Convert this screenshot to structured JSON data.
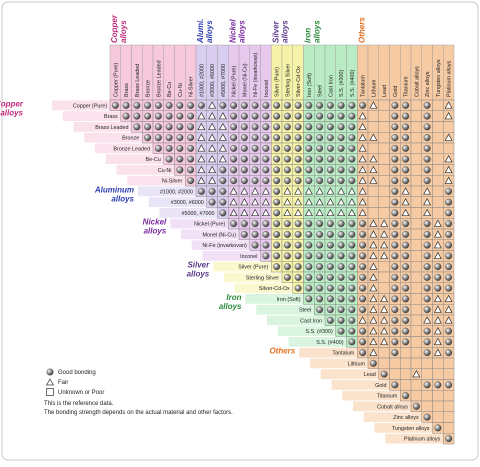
{
  "materials": [
    "Copper (Pure)",
    "Brass",
    "Brass Leaded",
    "Bronze",
    "Bronze Leaded",
    "Be-Cu",
    "Cu-Ni",
    "Ni-Silver",
    "#1000, #2000",
    "#3000, #6000",
    "#5000, #7000",
    "Nickel (Pure)",
    "Monel (Ni-Cu)",
    "Ni-Fe (invarkovan)",
    "Inconel",
    "Silver (Pure)",
    "Sterling Silver",
    "Silver-Cd-Ox",
    "Iron (Soft)",
    "Steel",
    "Cast Iron",
    "S.S. (#300)",
    "S.S. (#400)",
    "Tantalum",
    "Lithium",
    "Lead",
    "Gold",
    "Titanium",
    "Cobalt alloys",
    "Zinc alloys",
    "Tungsten alloys",
    "Platinum alloys"
  ],
  "groups": [
    {
      "top_label": [
        "Copper",
        "alloys"
      ],
      "side_label": [
        "Copper",
        "alloys"
      ],
      "start": 0,
      "count": 8,
      "color": "#f6c9dd",
      "text_color": "#c0287a"
    },
    {
      "top_label": [
        "Alumi.",
        "alloys"
      ],
      "side_label": [
        "Aluminum",
        "alloys"
      ],
      "start": 8,
      "count": 3,
      "color": "#d9cdf0",
      "text_color": "#2a3cb0"
    },
    {
      "top_label": [
        "Nickel",
        "alloys"
      ],
      "side_label": [
        "Nickel",
        "alloys"
      ],
      "start": 11,
      "count": 4,
      "color": "#e8c9ee",
      "text_color": "#7a2aa0"
    },
    {
      "top_label": [
        "Silver",
        "alloys"
      ],
      "side_label": [
        "Silver",
        "alloys"
      ],
      "start": 15,
      "count": 3,
      "color": "#f6f3a8",
      "text_color": "#5a3a8a"
    },
    {
      "top_label": [
        "Iron",
        "alloys"
      ],
      "side_label": [
        "Iron",
        "alloys"
      ],
      "start": 18,
      "count": 5,
      "color": "#b9ecc4",
      "text_color": "#2a8a3a"
    },
    {
      "top_label": [
        "Others"
      ],
      "side_label": [
        "Others"
      ],
      "start": 23,
      "count": 9,
      "color": "#f6caa3",
      "text_color": "#e07020"
    }
  ],
  "cells": [
    "00000000010000000000000012002021",
    "0000000111000000000000122002021",
    "000000111000000000000122002022",
    "00000111000000000000112002021",
    "0000111000000000000122002022",
    "000111000000000000112002021",
    "00110000000000000112002021",
    "0110000000000000112002021",
    "000111101111111122012120",
    "00111101111111122012120",
    "0111101111111122012120",
    "000000000000011002010",
    "00000000000011002010",
    "0000000000011002010",
    "000000000011002010",
    "00000000012002000",
    "0000000012002000",
    "000000012002000",
    "00000011002011",
    "0000011002011",
    "000111002111",
    "00011002010",
    "0011002010",
    "012022010",
    "02222222",
    "0221222",
    "022000",
    "02222",
    "0222",
    "022",
    "02",
    "0"
  ],
  "legend": [
    "Good bonding",
    "Fair",
    "Unknown or Poor"
  ],
  "notes": [
    "This is the reference data.",
    "The bonding strength depends on the actual material and other factors."
  ]
}
